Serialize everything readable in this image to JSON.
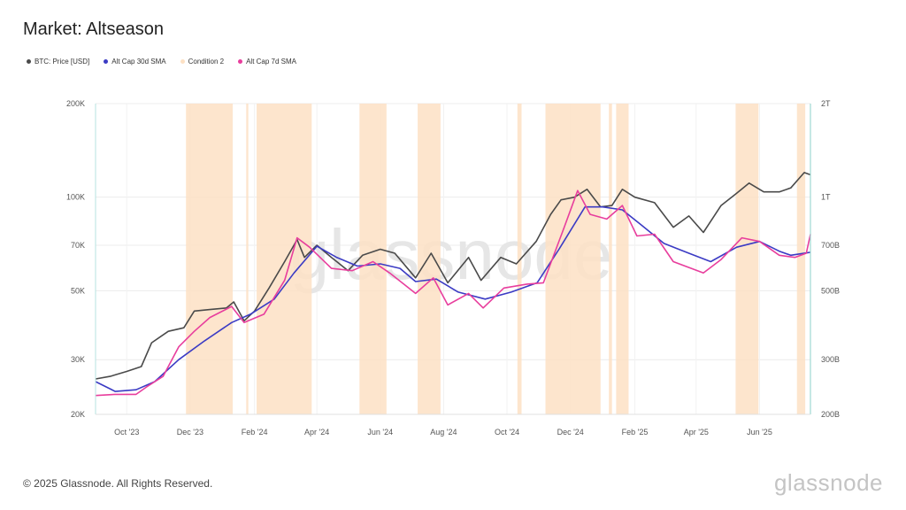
{
  "header": {
    "title": "Market: Altseason"
  },
  "legend": [
    {
      "label": "BTC: Price [USD]",
      "color": "#4a4a4a"
    },
    {
      "label": "Alt Cap 30d SMA",
      "color": "#3b3bc4"
    },
    {
      "label": "Condition 2",
      "color": "#fde1c4"
    },
    {
      "label": "Alt Cap 7d SMA",
      "color": "#e83e9d"
    }
  ],
  "chart_data": {
    "type": "line",
    "title": "Market: Altseason",
    "x_range": [
      "2023-09-01",
      "2025-07-20"
    ],
    "x_ticks": [
      {
        "label": "Oct '23",
        "date": "2023-10-01"
      },
      {
        "label": "Dec '23",
        "date": "2023-12-01"
      },
      {
        "label": "Feb '24",
        "date": "2024-02-01"
      },
      {
        "label": "Apr '24",
        "date": "2024-04-01"
      },
      {
        "label": "Jun '24",
        "date": "2024-06-01"
      },
      {
        "label": "Aug '24",
        "date": "2024-08-01"
      },
      {
        "label": "Oct '24",
        "date": "2024-10-01"
      },
      {
        "label": "Dec '24",
        "date": "2024-12-01"
      },
      {
        "label": "Feb '25",
        "date": "2025-02-01"
      },
      {
        "label": "Apr '25",
        "date": "2025-04-01"
      },
      {
        "label": "Jun '25",
        "date": "2025-06-01"
      }
    ],
    "y_left": {
      "scale": "log",
      "range": [
        20000,
        200000
      ],
      "ticks": [
        {
          "label": "20K",
          "value": 20000
        },
        {
          "label": "30K",
          "value": 30000
        },
        {
          "label": "50K",
          "value": 50000
        },
        {
          "label": "70K",
          "value": 70000
        },
        {
          "label": "100K",
          "value": 100000
        },
        {
          "label": "200K",
          "value": 200000
        }
      ]
    },
    "y_right": {
      "scale": "log",
      "range": [
        200000000000,
        2000000000000
      ],
      "ticks": [
        {
          "label": "200B",
          "value": 200000000000
        },
        {
          "label": "300B",
          "value": 300000000000
        },
        {
          "label": "500B",
          "value": 500000000000
        },
        {
          "label": "700B",
          "value": 700000000000
        },
        {
          "label": "1T",
          "value": 1000000000000
        },
        {
          "label": "2T",
          "value": 2000000000000
        }
      ]
    },
    "grid": true,
    "legend_position": "top-left",
    "condition_2_periods": [
      [
        "2023-11-27",
        "2024-01-11"
      ],
      [
        "2024-01-24",
        "2024-01-26"
      ],
      [
        "2024-02-03",
        "2024-03-27"
      ],
      [
        "2024-05-12",
        "2024-06-07"
      ],
      [
        "2024-07-07",
        "2024-07-29"
      ],
      [
        "2024-10-11",
        "2024-10-15"
      ],
      [
        "2024-11-07",
        "2024-12-30"
      ],
      [
        "2025-01-07",
        "2025-01-10"
      ],
      [
        "2025-01-14",
        "2025-01-26"
      ],
      [
        "2025-05-09",
        "2025-05-31"
      ],
      [
        "2025-07-07",
        "2025-07-15"
      ]
    ],
    "series": [
      {
        "name": "BTC: Price [USD]",
        "color": "#4a4a4a",
        "axis": "left",
        "points": [
          [
            "2023-09-01",
            26000
          ],
          [
            "2023-09-15",
            26500
          ],
          [
            "2023-10-01",
            27500
          ],
          [
            "2023-10-15",
            28500
          ],
          [
            "2023-10-25",
            34000
          ],
          [
            "2023-11-10",
            37000
          ],
          [
            "2023-11-25",
            38000
          ],
          [
            "2023-12-05",
            43000
          ],
          [
            "2023-12-20",
            43500
          ],
          [
            "2024-01-05",
            44000
          ],
          [
            "2024-01-12",
            46000
          ],
          [
            "2024-01-22",
            40000
          ],
          [
            "2024-02-01",
            43000
          ],
          [
            "2024-02-15",
            51000
          ],
          [
            "2024-03-01",
            62000
          ],
          [
            "2024-03-13",
            73000
          ],
          [
            "2024-03-20",
            64000
          ],
          [
            "2024-04-01",
            70000
          ],
          [
            "2024-04-15",
            64000
          ],
          [
            "2024-05-01",
            58000
          ],
          [
            "2024-05-15",
            65000
          ],
          [
            "2024-06-01",
            68000
          ],
          [
            "2024-06-15",
            66000
          ],
          [
            "2024-07-05",
            55000
          ],
          [
            "2024-07-20",
            66000
          ],
          [
            "2024-08-05",
            53000
          ],
          [
            "2024-08-25",
            64000
          ],
          [
            "2024-09-06",
            54000
          ],
          [
            "2024-09-25",
            64000
          ],
          [
            "2024-10-10",
            61000
          ],
          [
            "2024-10-29",
            72000
          ],
          [
            "2024-11-12",
            88000
          ],
          [
            "2024-11-22",
            98000
          ],
          [
            "2024-12-05",
            100000
          ],
          [
            "2024-12-17",
            106000
          ],
          [
            "2024-12-30",
            93000
          ],
          [
            "2025-01-10",
            94000
          ],
          [
            "2025-01-20",
            106000
          ],
          [
            "2025-02-01",
            100000
          ],
          [
            "2025-02-20",
            96000
          ],
          [
            "2025-03-10",
            80000
          ],
          [
            "2025-03-25",
            87000
          ],
          [
            "2025-04-08",
            77000
          ],
          [
            "2025-04-25",
            94000
          ],
          [
            "2025-05-10",
            103000
          ],
          [
            "2025-05-22",
            111000
          ],
          [
            "2025-06-05",
            104000
          ],
          [
            "2025-06-20",
            104000
          ],
          [
            "2025-07-01",
            107000
          ],
          [
            "2025-07-14",
            120000
          ],
          [
            "2025-07-20",
            118000
          ]
        ]
      },
      {
        "name": "Alt Cap 30d SMA",
        "color": "#3b3bc4",
        "axis": "right",
        "points": [
          [
            "2023-09-01",
            255000000000
          ],
          [
            "2023-09-20",
            237000000000
          ],
          [
            "2023-10-10",
            240000000000
          ],
          [
            "2023-10-28",
            255000000000
          ],
          [
            "2023-11-20",
            300000000000
          ],
          [
            "2023-12-15",
            345000000000
          ],
          [
            "2024-01-10",
            395000000000
          ],
          [
            "2024-01-28",
            420000000000
          ],
          [
            "2024-02-20",
            470000000000
          ],
          [
            "2024-03-10",
            570000000000
          ],
          [
            "2024-04-01",
            695000000000
          ],
          [
            "2024-04-20",
            640000000000
          ],
          [
            "2024-05-10",
            600000000000
          ],
          [
            "2024-06-01",
            610000000000
          ],
          [
            "2024-06-20",
            590000000000
          ],
          [
            "2024-07-05",
            535000000000
          ],
          [
            "2024-07-25",
            545000000000
          ],
          [
            "2024-08-15",
            495000000000
          ],
          [
            "2024-09-10",
            470000000000
          ],
          [
            "2024-10-05",
            495000000000
          ],
          [
            "2024-10-30",
            530000000000
          ],
          [
            "2024-11-20",
            680000000000
          ],
          [
            "2024-12-15",
            930000000000
          ],
          [
            "2025-01-01",
            930000000000
          ],
          [
            "2025-01-20",
            910000000000
          ],
          [
            "2025-02-10",
            800000000000
          ],
          [
            "2025-03-01",
            710000000000
          ],
          [
            "2025-03-25",
            660000000000
          ],
          [
            "2025-04-15",
            620000000000
          ],
          [
            "2025-05-10",
            690000000000
          ],
          [
            "2025-06-01",
            720000000000
          ],
          [
            "2025-06-20",
            670000000000
          ],
          [
            "2025-07-01",
            650000000000
          ],
          [
            "2025-07-20",
            665000000000
          ]
        ]
      },
      {
        "name": "Alt Cap 7d SMA",
        "color": "#e83e9d",
        "axis": "right",
        "points": [
          [
            "2023-09-01",
            230000000000
          ],
          [
            "2023-09-20",
            232000000000
          ],
          [
            "2023-10-10",
            232000000000
          ],
          [
            "2023-10-20",
            245000000000
          ],
          [
            "2023-11-05",
            265000000000
          ],
          [
            "2023-11-20",
            330000000000
          ],
          [
            "2023-12-05",
            370000000000
          ],
          [
            "2023-12-20",
            410000000000
          ],
          [
            "2024-01-10",
            445000000000
          ],
          [
            "2024-01-22",
            395000000000
          ],
          [
            "2024-02-10",
            420000000000
          ],
          [
            "2024-03-01",
            540000000000
          ],
          [
            "2024-03-13",
            740000000000
          ],
          [
            "2024-03-25",
            690000000000
          ],
          [
            "2024-04-15",
            590000000000
          ],
          [
            "2024-05-05",
            580000000000
          ],
          [
            "2024-05-25",
            620000000000
          ],
          [
            "2024-06-10",
            570000000000
          ],
          [
            "2024-07-05",
            490000000000
          ],
          [
            "2024-07-22",
            550000000000
          ],
          [
            "2024-08-05",
            450000000000
          ],
          [
            "2024-08-25",
            490000000000
          ],
          [
            "2024-09-08",
            440000000000
          ],
          [
            "2024-09-28",
            510000000000
          ],
          [
            "2024-10-20",
            525000000000
          ],
          [
            "2024-11-05",
            530000000000
          ],
          [
            "2024-11-25",
            800000000000
          ],
          [
            "2024-12-08",
            1050000000000
          ],
          [
            "2024-12-20",
            880000000000
          ],
          [
            "2025-01-05",
            850000000000
          ],
          [
            "2025-01-20",
            940000000000
          ],
          [
            "2025-02-03",
            750000000000
          ],
          [
            "2025-02-20",
            760000000000
          ],
          [
            "2025-03-10",
            620000000000
          ],
          [
            "2025-04-08",
            570000000000
          ],
          [
            "2025-04-25",
            630000000000
          ],
          [
            "2025-05-15",
            740000000000
          ],
          [
            "2025-06-01",
            720000000000
          ],
          [
            "2025-06-20",
            650000000000
          ],
          [
            "2025-07-05",
            640000000000
          ],
          [
            "2025-07-16",
            660000000000
          ],
          [
            "2025-07-20",
            760000000000
          ]
        ]
      }
    ]
  },
  "footer": {
    "copyright": "© 2025 Glassnode. All Rights Reserved.",
    "brand": "glassnode"
  },
  "watermark": "glassnode"
}
